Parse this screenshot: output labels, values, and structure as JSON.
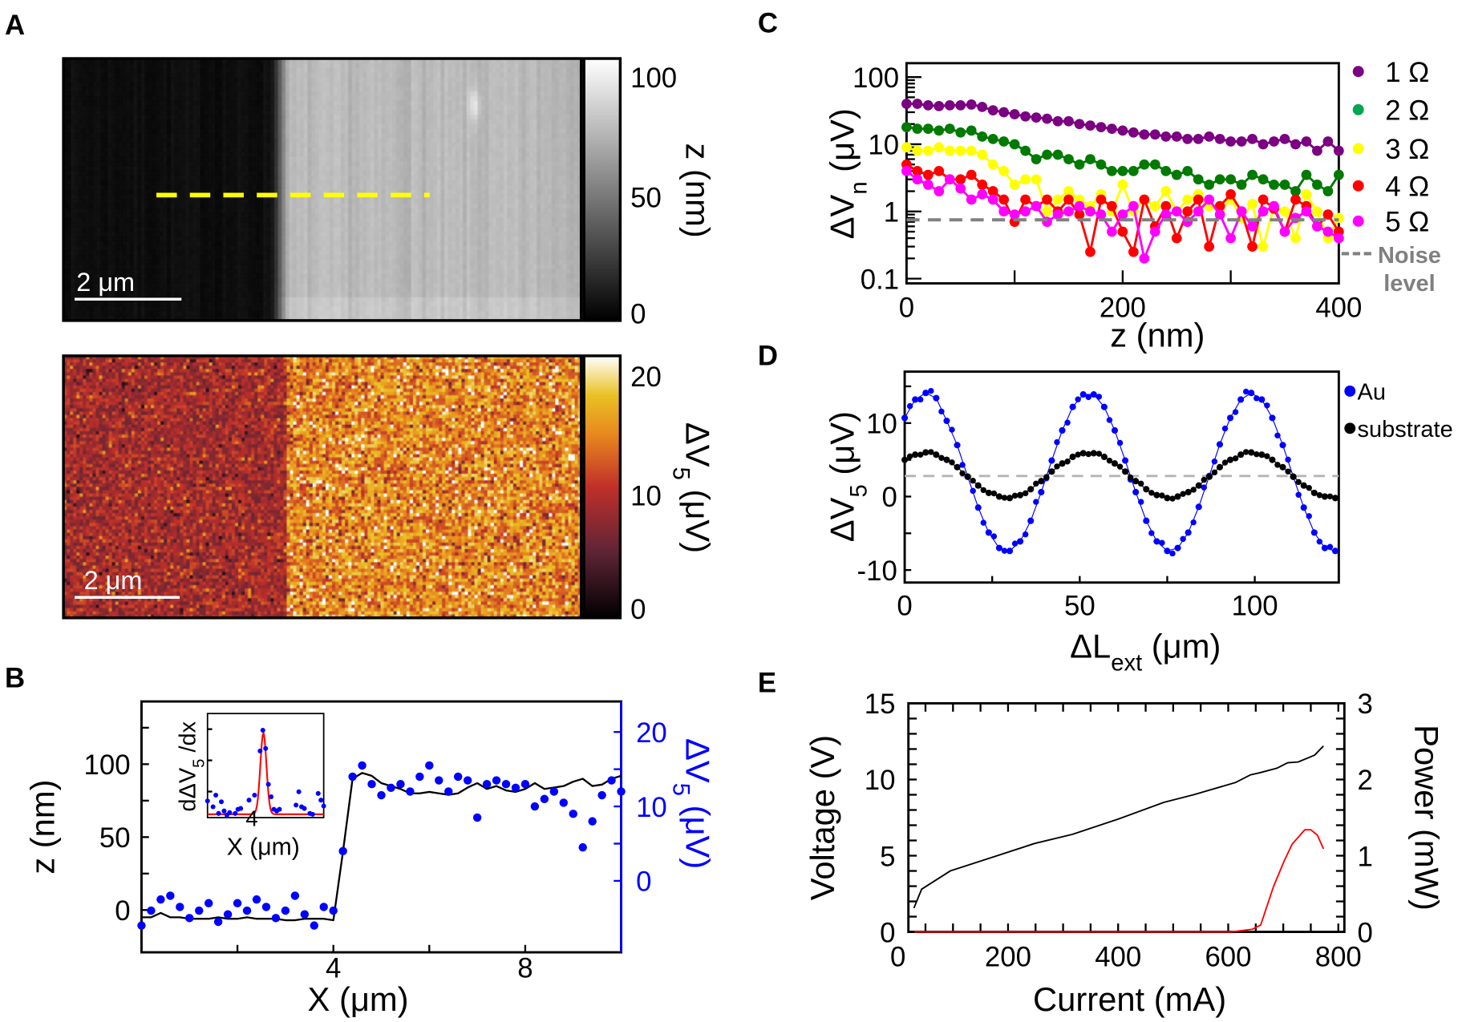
{
  "panels": {
    "a": "A",
    "b": "B",
    "c": "C",
    "d": "D",
    "e": "E"
  },
  "panel_a": {
    "topography": {
      "scale_bar": "2 μm",
      "colormap": "gray",
      "colorbar_ticks": [
        "100",
        "50",
        "0"
      ],
      "colorbar_label": "z (nm)"
    },
    "thermovoltage": {
      "scale_bar": "2 μm",
      "colormap": "afmhot",
      "colorbar_ticks": [
        "20",
        "10",
        "0"
      ],
      "colorbar_label": {
        "text": "ΔV",
        "sub": "5",
        "after": " (μV)"
      }
    },
    "line_profile_color": "#ffff00"
  },
  "chart_data": [
    {
      "panel": "B",
      "type": "line+scatter",
      "xlabel": "X (μm)",
      "ylabel": "z (nm)",
      "y2label": {
        "text": "ΔV",
        "sub": "5",
        "after": " (μV)"
      },
      "xlim": [
        0,
        10
      ],
      "ylim": [
        -29,
        143
      ],
      "y2lim": [
        -9.6,
        24.1
      ],
      "xticks": [
        4,
        8
      ],
      "yticks": [
        0,
        50,
        100
      ],
      "y2ticks": [
        0,
        10,
        20
      ],
      "y2_color": "#0000ff",
      "x": [
        0,
        0.2,
        0.4,
        0.6,
        0.8,
        1.0,
        1.2,
        1.4,
        1.6,
        1.8,
        2.0,
        2.2,
        2.4,
        2.6,
        2.8,
        3.0,
        3.2,
        3.4,
        3.6,
        3.8,
        4.0,
        4.2,
        4.4,
        4.6,
        4.8,
        5.0,
        5.2,
        5.4,
        5.6,
        5.8,
        6.0,
        6.2,
        6.4,
        6.6,
        6.8,
        7.0,
        7.2,
        7.4,
        7.6,
        7.8,
        8.0,
        8.2,
        8.4,
        8.6,
        8.8,
        9.0,
        9.2,
        9.4,
        9.6,
        9.8,
        10.0
      ],
      "series": [
        {
          "axis": "left",
          "style": "line",
          "color": "#000000",
          "values": [
            -5,
            -5,
            -2,
            -5,
            -5,
            -6,
            -6,
            -6,
            -5,
            -6,
            -6,
            -5,
            -6,
            -6,
            -6,
            -7,
            -7,
            -6,
            -6,
            -6,
            -7,
            40,
            90,
            94,
            92,
            87,
            85,
            83,
            80,
            80,
            81,
            80,
            79,
            80,
            84,
            87,
            83,
            85,
            82,
            81,
            83,
            87,
            83,
            84,
            85,
            88,
            90,
            85,
            86,
            90,
            92
          ]
        },
        {
          "axis": "right",
          "style": "scatter",
          "color": "#0000ff",
          "values": [
            -6,
            -4,
            -2.5,
            -2,
            -3.5,
            -5,
            -4,
            -3,
            -5.5,
            -4.5,
            -3,
            -4,
            -2.5,
            -3.5,
            -5,
            -4,
            -2,
            -4.5,
            -6,
            -3.5,
            -4,
            4,
            14,
            15.5,
            13,
            11.5,
            12.5,
            13,
            12,
            14,
            15.5,
            13.5,
            12,
            14,
            13.5,
            8.5,
            13,
            13.5,
            13,
            12.5,
            13,
            10,
            11,
            12,
            10.5,
            9,
            4.5,
            8,
            11.5,
            13.5,
            12
          ]
        }
      ],
      "inset": {
        "ylabel": {
          "text": "dΔV",
          "sub": "5",
          "after": " /dx"
        },
        "xlabel": "X (μm)",
        "xticks": [
          4
        ],
        "xlim": [
          3.2,
          5.3
        ],
        "ylim": [
          -0.05,
          1.2
        ],
        "points_x": [
          3.2,
          3.3,
          3.35,
          3.4,
          3.45,
          3.5,
          3.55,
          3.6,
          3.7,
          3.75,
          3.8,
          3.95,
          4.05,
          4.15,
          4.2,
          4.25,
          4.3,
          4.35,
          4.4,
          4.45,
          4.5,
          4.8,
          4.85,
          4.9,
          4.95,
          5.05,
          5.1,
          5.2,
          5.25,
          5.3
        ],
        "points_y": [
          0.15,
          0.08,
          0.22,
          0.0,
          0.14,
          0.03,
          -0.02,
          0.01,
          0.0,
          0.05,
          0.06,
          0.16,
          0.22,
          0.75,
          1.0,
          0.78,
          0.35,
          0.2,
          0.05,
          0.03,
          0.05,
          0.1,
          0.26,
          0.08,
          0.06,
          0.0,
          -0.01,
          0.24,
          0.16,
          0.09
        ],
        "fit": {
          "type": "gaussian",
          "center": 4.21,
          "sigma": 0.055,
          "amplitude": 0.98,
          "color": "#ff0000"
        }
      }
    },
    {
      "panel": "C",
      "type": "line",
      "xlabel": "z (nm)",
      "ylabel": {
        "text": "ΔV",
        "sub": "n",
        "after": " (μV)"
      },
      "xlim": [
        0,
        400
      ],
      "ylim": [
        0.085,
        161
      ],
      "yscale": "log",
      "xticks": [
        0,
        200,
        400
      ],
      "yticks": [
        0.1,
        1,
        10,
        100
      ],
      "x": [
        0,
        10,
        20,
        30,
        40,
        50,
        60,
        70,
        80,
        90,
        100,
        110,
        120,
        130,
        140,
        150,
        160,
        170,
        180,
        190,
        200,
        210,
        220,
        230,
        240,
        250,
        260,
        270,
        280,
        290,
        300,
        310,
        320,
        330,
        340,
        350,
        360,
        370,
        380,
        390,
        400
      ],
      "series": [
        {
          "name": "1 Ω",
          "color": "#7b0082",
          "values": [
            40,
            40,
            38,
            37,
            38,
            38,
            39,
            36,
            32,
            30,
            28,
            26,
            25,
            24,
            22,
            22,
            20,
            19,
            18,
            17,
            16,
            15,
            14,
            14,
            13,
            13,
            12,
            12,
            13,
            12,
            11,
            11,
            12,
            10,
            11,
            12,
            10,
            11,
            8,
            11,
            8
          ]
        },
        {
          "name": "2 Ω",
          "color": "#007a00",
          "legend_color": "#00a651",
          "values": [
            18,
            17,
            17,
            16,
            17,
            15,
            16,
            13,
            12,
            11,
            10,
            8,
            6,
            7,
            7,
            6,
            5,
            6,
            5,
            4,
            4,
            4,
            5,
            5,
            4,
            3.5,
            4,
            3,
            2.5,
            3,
            3,
            2.5,
            3.5,
            3,
            2.5,
            2.5,
            2,
            3.5,
            2.5,
            2,
            3.5
          ]
        },
        {
          "name": "3 Ω",
          "color": "#ffff00",
          "values": [
            9,
            8,
            8,
            9,
            8,
            8,
            8,
            7,
            5,
            4,
            2.5,
            3,
            3,
            1,
            1.5,
            2,
            1.5,
            1.2,
            1.8,
            1,
            2.5,
            1,
            1.5,
            1.2,
            2,
            1,
            1.5,
            1.8,
            1.2,
            1,
            1.5,
            0.8,
            1.3,
            0.3,
            1.2,
            1,
            0.4,
            1.8,
            1,
            0.4,
            0.8
          ]
        },
        {
          "name": "4 Ω",
          "color": "#ff0000",
          "values": [
            5,
            4,
            3.5,
            4,
            3,
            3,
            3.5,
            2.5,
            2,
            1.5,
            0.7,
            1.5,
            1.2,
            1.5,
            1,
            1.5,
            0.9,
            0.25,
            1.5,
            1.2,
            0.5,
            0.25,
            1.5,
            0.6,
            1.2,
            0.4,
            1,
            1.5,
            0.3,
            1.2,
            1.8,
            1,
            0.3,
            1.5,
            1.1,
            0.5,
            1.5,
            1.2,
            0.6,
            0.9,
            0.5
          ]
        },
        {
          "name": "5 Ω",
          "color": "#ff00ff",
          "values": [
            4,
            3,
            2.5,
            2,
            3,
            2.2,
            1.5,
            1.8,
            1.5,
            1,
            0.9,
            1,
            1.2,
            0.7,
            0.9,
            1,
            1.2,
            1,
            0.9,
            0.5,
            0.9,
            1.2,
            0.2,
            0.5,
            0.9,
            1,
            0.7,
            1,
            1.5,
            0.9,
            0.4,
            1,
            0.6,
            1,
            1.2,
            0.5,
            0.8,
            1,
            0.6,
            0.5,
            0.4
          ]
        }
      ],
      "noise_level": {
        "value": 0.75,
        "label_line1": "Noise",
        "label_line2": "level",
        "color": "#808080"
      },
      "legend": "right"
    },
    {
      "panel": "D",
      "type": "scatter+fit",
      "xlabel": {
        "text": "ΔL",
        "sub": "ext",
        "after": " (μm)"
      },
      "ylabel": {
        "text": "ΔV",
        "sub": "5",
        "after": " (μV)"
      },
      "xlim": [
        0,
        124
      ],
      "ylim": [
        -11.7,
        17
      ],
      "xticks": [
        0,
        50,
        100
      ],
      "yticks": [
        -10,
        0,
        10
      ],
      "reference_line": {
        "value": 2.8,
        "color": "#b4b4b4"
      },
      "x": [
        0,
        3,
        6,
        9,
        12,
        15,
        18,
        21,
        24,
        27,
        30,
        33,
        36,
        39,
        42,
        45,
        48,
        51,
        54,
        57,
        60,
        63,
        66,
        69,
        72,
        75,
        78,
        81,
        84,
        87,
        90,
        93,
        96,
        99,
        102,
        105,
        108,
        111,
        114,
        117,
        120,
        123
      ],
      "series": [
        {
          "name": "Au",
          "color": "#0000ff",
          "values": [
            10.7,
            13.2,
            14.1,
            13.4,
            10.3,
            7.0,
            2.7,
            -1.5,
            -4.9,
            -7.0,
            -7.4,
            -6.1,
            -3.3,
            0.6,
            4.9,
            9.0,
            12.2,
            13.9,
            13.9,
            12.2,
            9.0,
            4.9,
            0.6,
            -3.3,
            -6.1,
            -7.4,
            -7.0,
            -4.9,
            -1.4,
            2.8,
            7.1,
            10.7,
            13.2,
            14.1,
            13.2,
            10.7,
            7.0,
            2.7,
            -1.5,
            -4.9,
            -7.0,
            -7.4
          ]
        },
        {
          "name": "substrate",
          "color": "#000000",
          "values": [
            5.0,
            5.7,
            6.0,
            5.7,
            5.0,
            4.0,
            2.7,
            1.5,
            0.5,
            0.0,
            -0.2,
            0.2,
            1.0,
            2.1,
            3.4,
            4.5,
            5.4,
            5.9,
            5.9,
            5.4,
            4.5,
            3.4,
            2.1,
            1.0,
            0.2,
            -0.2,
            0.0,
            0.6,
            1.5,
            2.7,
            4.0,
            5.0,
            5.7,
            6.0,
            5.7,
            5.0,
            4.0,
            2.7,
            1.5,
            0.5,
            0.0,
            -0.2
          ]
        }
      ],
      "legend": "right"
    },
    {
      "panel": "E",
      "type": "line",
      "xlabel": "Current (mA)",
      "ylabel": "Voltage (V)",
      "y2label": "Power (mW)",
      "xlim": [
        19,
        811
      ],
      "ylim": [
        0,
        15
      ],
      "y2lim": [
        0,
        3
      ],
      "xticks": [
        0,
        200,
        400,
        600,
        800
      ],
      "yticks": [
        0,
        5,
        10,
        15
      ],
      "y2ticks": [
        0,
        1,
        2,
        3
      ],
      "series": [
        {
          "name": "Voltage",
          "axis": "left",
          "color": "#000000",
          "x": [
            29,
            43,
            95,
            172,
            248,
            317,
            400,
            483,
            537,
            613,
            640,
            658,
            689,
            708,
            727,
            757,
            773
          ],
          "values": [
            1.56,
            2.8,
            4.0,
            4.9,
            5.8,
            6.4,
            7.4,
            8.5,
            9.0,
            9.8,
            10.3,
            10.45,
            10.75,
            11.1,
            11.15,
            11.6,
            12.2
          ]
        },
        {
          "name": "Power",
          "axis": "right",
          "color": "#ff0000",
          "x": [
            30,
            606,
            644,
            659,
            682,
            701,
            716,
            739,
            750,
            762,
            773
          ],
          "values": [
            0,
            0,
            0.035,
            0.09,
            0.59,
            0.92,
            1.15,
            1.34,
            1.34,
            1.27,
            1.09
          ]
        }
      ]
    }
  ]
}
